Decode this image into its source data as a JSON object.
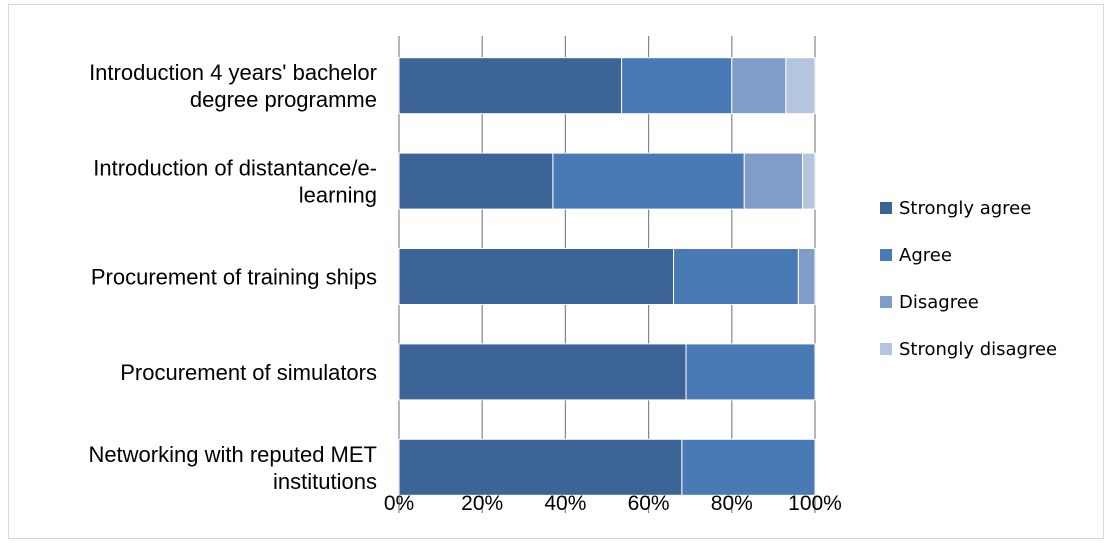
{
  "chart_data": {
    "type": "bar",
    "orientation": "horizontal",
    "stacked": "percent",
    "title": "",
    "xlabel": "",
    "ylabel": "",
    "xlim": [
      0,
      100
    ],
    "x_ticks": [
      "0%",
      "20%",
      "40%",
      "60%",
      "80%",
      "100%"
    ],
    "grid": true,
    "legend_position": "right",
    "categories": [
      [
        "Introduction 4 years' bachelor",
        "degree programme"
      ],
      [
        "Introduction of distantance/e-",
        "learning"
      ],
      [
        "Procurement of training ships"
      ],
      [
        "Procurement of simulators"
      ],
      [
        "Networking with reputed MET",
        "institutions"
      ]
    ],
    "series": [
      {
        "name": "Strongly agree",
        "color": "#3c6496",
        "values": [
          53.5,
          37,
          66,
          69,
          68
        ]
      },
      {
        "name": "Agree",
        "color": "#4a7ab5",
        "values": [
          26.5,
          46,
          30,
          31,
          32
        ]
      },
      {
        "name": "Disagree",
        "color": "#7f9dc8",
        "values": [
          13,
          14,
          4,
          0,
          0
        ]
      },
      {
        "name": "Strongly disagree",
        "color": "#b5c5e0",
        "values": [
          7,
          3,
          0,
          0,
          0
        ]
      }
    ]
  }
}
